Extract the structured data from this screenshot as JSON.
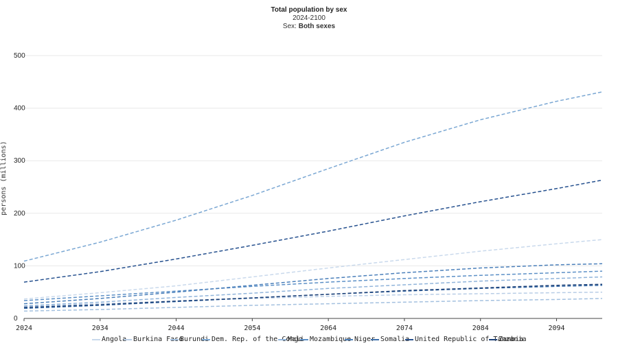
{
  "chart_data": {
    "type": "line",
    "title": "Total population by sex",
    "subtitle": "2024-2100",
    "filter_label": "Sex: ",
    "filter_value": "Both sexes",
    "ylabel": "persons (millions)",
    "xlabel": "",
    "xlim": [
      2024,
      2100
    ],
    "ylim": [
      0,
      500
    ],
    "yticks": [
      "0",
      "100",
      "200",
      "300",
      "400",
      "500"
    ],
    "xticks": [
      "2024",
      "2034",
      "2044",
      "2054",
      "2064",
      "2074",
      "2084",
      "2094"
    ],
    "x": [
      2024,
      2034,
      2044,
      2054,
      2064,
      2074,
      2084,
      2094,
      2100
    ],
    "grid": true,
    "legend_position": "bottom",
    "line_style": "dashed",
    "series": [
      {
        "name": "Angola",
        "color": "#c9d9ec",
        "values": [
          37,
          49,
          62,
          79,
          96,
          112,
          128,
          142,
          150
        ]
      },
      {
        "name": "Burkina Faso",
        "color": "#b8cde6",
        "values": [
          23,
          28,
          33,
          38,
          42,
          45,
          47,
          49,
          50
        ]
      },
      {
        "name": "Burundi",
        "color": "#a3c0df",
        "values": [
          14,
          17,
          21,
          25,
          28,
          31,
          34,
          36,
          38
        ]
      },
      {
        "name": "Dem. Rep. of the Congo",
        "color": "#7aa7d3",
        "values": [
          109,
          145,
          187,
          234,
          285,
          335,
          378,
          413,
          431
        ]
      },
      {
        "name": "Mali",
        "color": "#8fb3da",
        "values": [
          24,
          31,
          40,
          48,
          57,
          64,
          71,
          76,
          79
        ]
      },
      {
        "name": "Mozambique",
        "color": "#5b8fc6",
        "values": [
          34,
          43,
          52,
          61,
          69,
          76,
          82,
          87,
          90
        ]
      },
      {
        "name": "Niger",
        "color": "#4a7fba",
        "values": [
          28,
          38,
          50,
          63,
          76,
          87,
          96,
          102,
          104
        ]
      },
      {
        "name": "Somalia",
        "color": "#3a6eaa",
        "values": [
          19,
          25,
          32,
          39,
          46,
          52,
          57,
          61,
          63
        ]
      },
      {
        "name": "United Republic of Tanzania",
        "color": "#25508e",
        "values": [
          69,
          89,
          113,
          139,
          166,
          195,
          222,
          247,
          263
        ]
      },
      {
        "name": "Zambia",
        "color": "#1b3f76",
        "values": [
          21,
          26,
          33,
          39,
          46,
          53,
          58,
          63,
          65
        ]
      }
    ]
  }
}
